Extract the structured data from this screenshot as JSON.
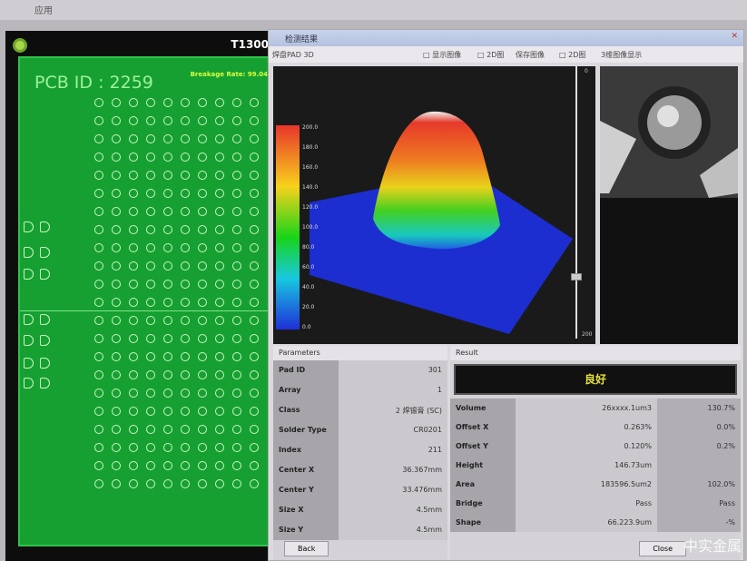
{
  "desktop": {
    "menu": "应用"
  },
  "app": {
    "title": "T1300",
    "pcb_id": "PCB ID : 2259",
    "breakage": "Breakage Rate: 99.04%"
  },
  "dialog": {
    "title": "检测结果",
    "toolbar": {
      "left": "焊盘PAD 3D",
      "items": [
        "□ 显示图像",
        "□ 2D图",
        "保存图像",
        "□ 2D图",
        "3维图像显示"
      ]
    },
    "colorbar": {
      "labels": [
        "200.0",
        "180.0",
        "160.0",
        "140.0",
        "120.0",
        "100.0",
        "80.0",
        "60.0",
        "40.0",
        "20.0",
        "0.0"
      ],
      "colors": [
        "#e8352a",
        "#f7d21c",
        "#18d418",
        "#18c8e0",
        "#1f2fd8"
      ]
    },
    "slider": {
      "top_label": "0",
      "bottom_label": "200",
      "value_fraction": 0.77
    },
    "parameters": {
      "title": "Parameters",
      "rows": [
        [
          "Pad ID",
          "301"
        ],
        [
          "Array",
          "1"
        ],
        [
          "Class",
          "2 焊锡膏 (SC)"
        ],
        [
          "Solder Type",
          "CR0201"
        ],
        [
          "Index",
          "211"
        ],
        [
          "Center X",
          "36.367mm"
        ],
        [
          "Center Y",
          "33.476mm"
        ],
        [
          "Size X",
          "4.5mm"
        ],
        [
          "Size Y",
          "4.5mm"
        ]
      ],
      "button": "Back"
    },
    "result": {
      "title": "Result",
      "judgement": "良好",
      "rows": [
        [
          "Volume",
          "26xxxx.1um3",
          "130.7%"
        ],
        [
          "Offset X",
          "0.263%",
          "0.0%"
        ],
        [
          "Offset Y",
          "0.120%",
          "0.2%"
        ],
        [
          "Height",
          "146.73um",
          ""
        ],
        [
          "Area",
          "183596.5um2",
          "102.0%"
        ],
        [
          "Bridge",
          "Pass",
          "Pass"
        ],
        [
          "Shape",
          "66.223.9um",
          "-%"
        ]
      ],
      "button": "Close"
    }
  },
  "watermark": "中实金属"
}
